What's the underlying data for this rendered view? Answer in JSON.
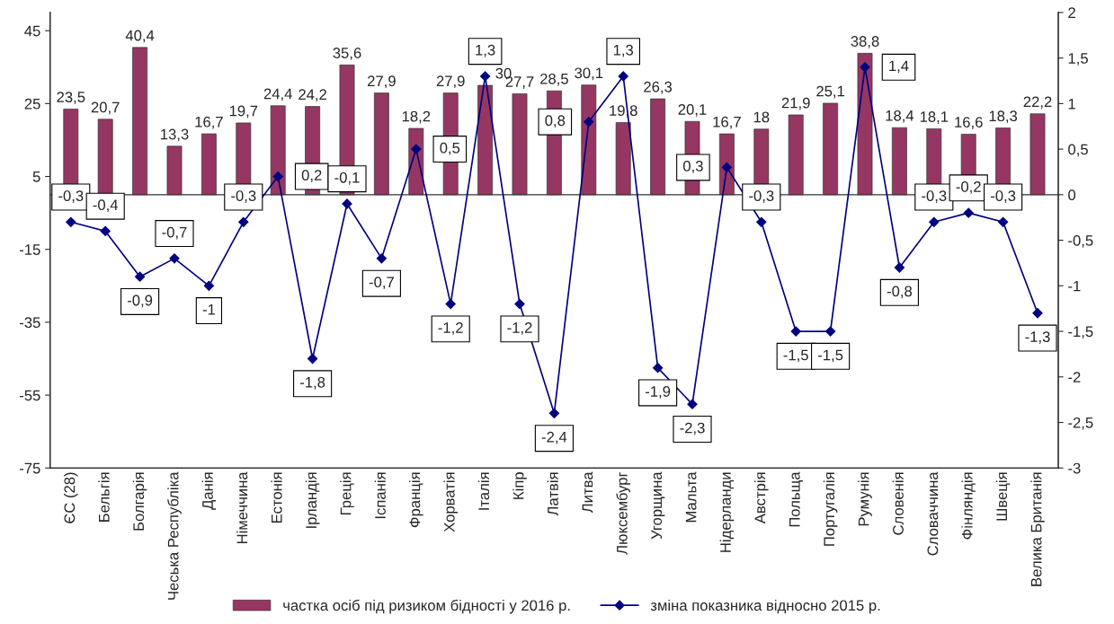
{
  "chart_data": {
    "type": "bar",
    "categories": [
      "ЄС (28)",
      "Бельгія",
      "Болгарія",
      "Чеська Республіка",
      "Данія",
      "Німеччина",
      "Естонія",
      "Ірландія",
      "Греція",
      "Іспанія",
      "Франція",
      "Хорватія",
      "Італія",
      "Кіпр",
      "Латвія",
      "Литва",
      "Люксембург",
      "Угорщина",
      "Мальта",
      "Нідерланди",
      "Австрія",
      "Польща",
      "Португалія",
      "Румунія",
      "Словенія",
      "Словаччина",
      "Фінляндія",
      "Швеція",
      "Велика Британія"
    ],
    "series": [
      {
        "name": "частка осіб під ризиком бідності у 2016 р.",
        "color": "#953762",
        "values": [
          23.5,
          20.7,
          40.4,
          13.3,
          16.7,
          19.7,
          24.4,
          24.2,
          35.6,
          27.9,
          18.2,
          27.9,
          30,
          27.7,
          28.5,
          30.1,
          19.8,
          26.3,
          20.1,
          16.7,
          18,
          21.9,
          25.1,
          38.8,
          18.4,
          18.1,
          16.6,
          18.3,
          22.2
        ],
        "value_labels": [
          "23,5",
          "20,7",
          "40,4",
          "13,3",
          "16,7",
          "19,7",
          "24,4",
          "24,2",
          "35,6",
          "27,9",
          "18,2",
          "27,9",
          "30",
          "27,7",
          "28,5",
          "30,1",
          "19,8",
          "26,3",
          "20,1",
          "16,7",
          "18",
          "21,9",
          "25,1",
          "38,8",
          "18,4",
          "18,1",
          "16,6",
          "18,3",
          "22,2"
        ]
      },
      {
        "name": "зміна показника відносно 2015 р.",
        "type": "line",
        "axis": "y2",
        "color": "#000080",
        "marker": "diamond",
        "values": [
          -0.3,
          -0.4,
          -0.9,
          -0.7,
          -1,
          -0.3,
          0.2,
          -1.8,
          -0.1,
          -0.7,
          0.5,
          -1.2,
          1.3,
          -1.2,
          -2.4,
          0.8,
          1.3,
          -1.9,
          -2.3,
          0.3,
          -0.3,
          -1.5,
          -1.5,
          1.4,
          -0.8,
          -0.3,
          -0.2,
          -0.3,
          -1.3
        ],
        "value_labels": [
          "-0,3",
          "-0,4",
          "-0,9",
          "-0,7",
          "-1",
          "-0,3",
          "0,2",
          "-1,8",
          "-0,1",
          "-0,7",
          "0,5",
          "-1,2",
          "1,3",
          "-1,2",
          "-2,4",
          "0,8",
          "1,3",
          "-1,9",
          "-2,3",
          "0,3",
          "-0,3",
          "-1,5",
          "-1,5",
          "1,4",
          "-0,8",
          "-0,3",
          "-0,2",
          "-0,3",
          "-1,3"
        ]
      }
    ],
    "ylim": [
      -75,
      50
    ],
    "yticks": [
      -75,
      -55,
      -35,
      -15,
      5,
      25,
      45
    ],
    "y2lim": [
      -3,
      2
    ],
    "y2ticks": [
      -3,
      {
        "value": -2.5,
        "label": "-2,5"
      },
      -2,
      {
        "value": -1.5,
        "label": "-1,5"
      },
      -1,
      {
        "value": -0.5,
        "label": "-0,5"
      },
      0,
      {
        "value": 0.5,
        "label": "0,5"
      },
      1,
      {
        "value": 1.5,
        "label": "1,5"
      },
      2
    ],
    "ref_lines": [
      {
        "axis": "y2",
        "value": 0
      }
    ],
    "legend": "bottom"
  }
}
